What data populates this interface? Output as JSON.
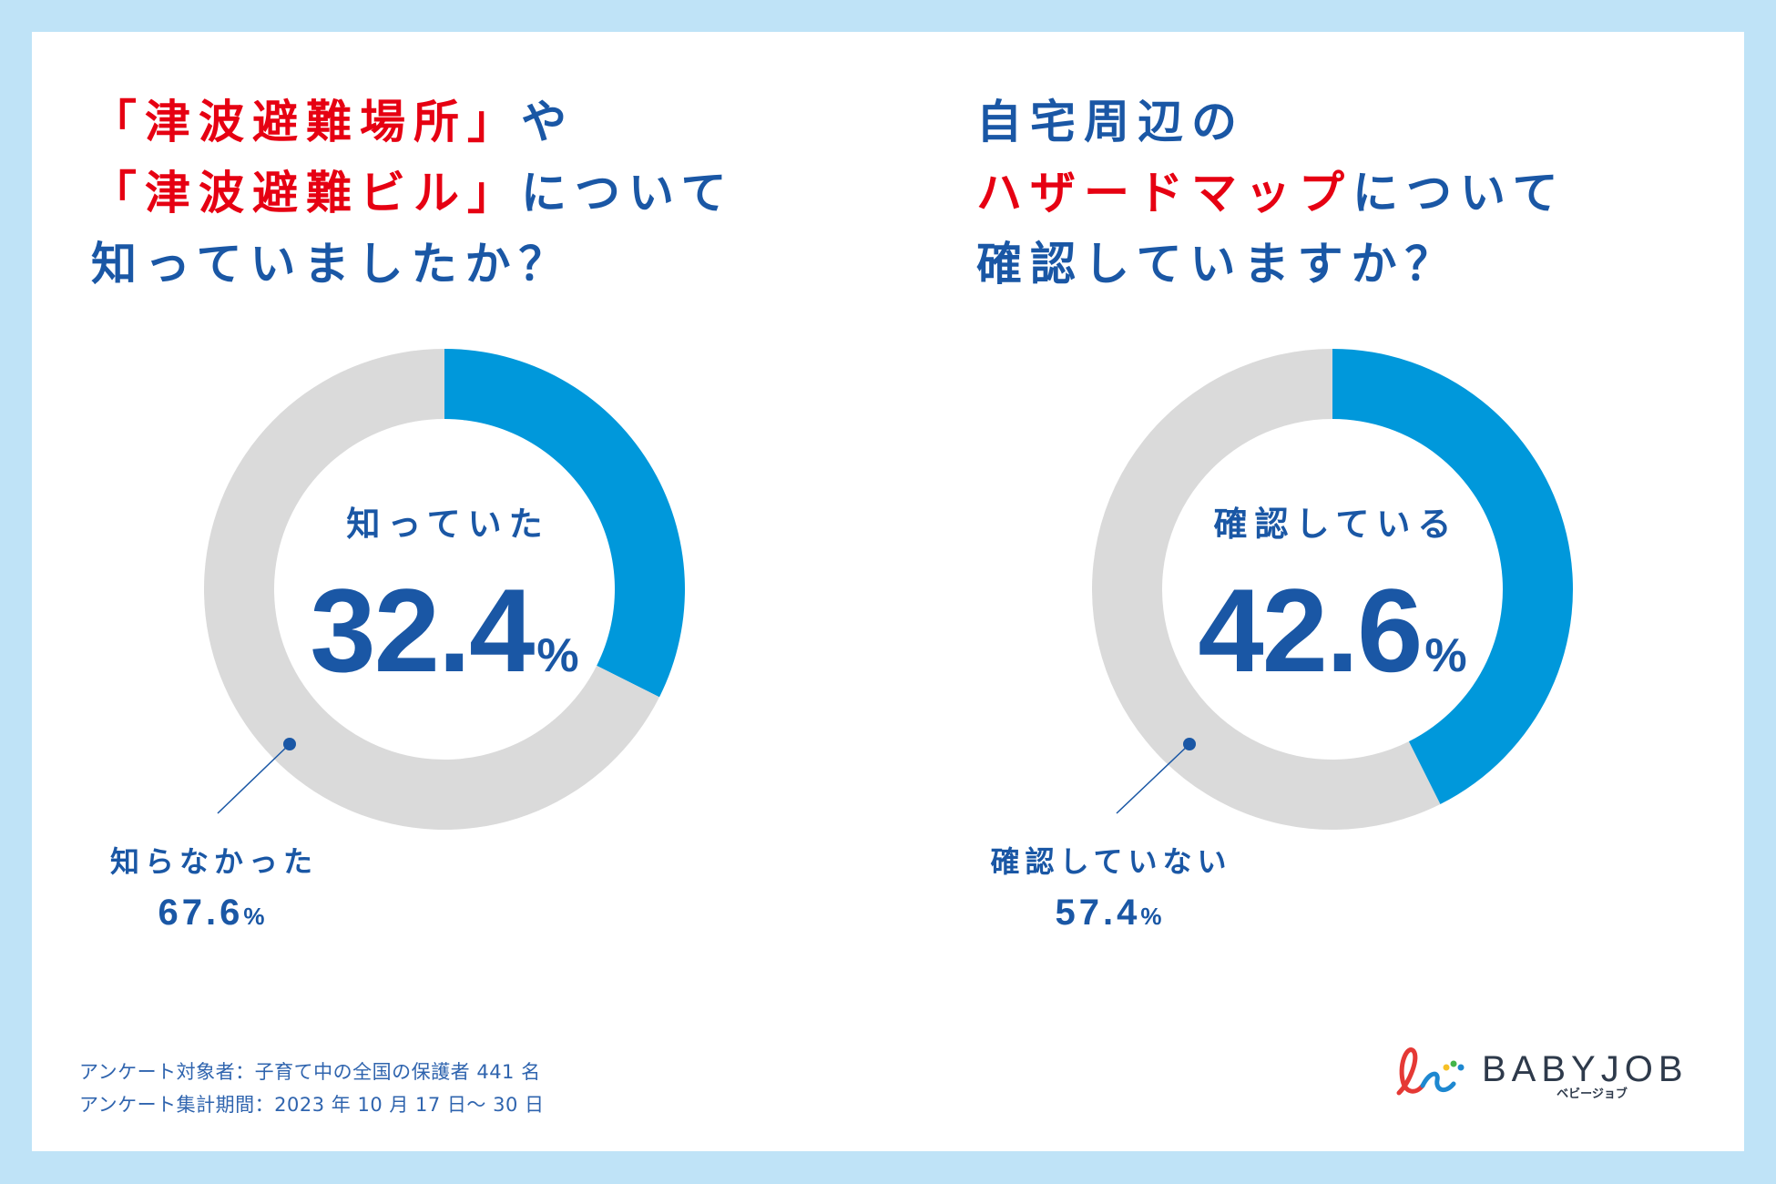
{
  "colors": {
    "frame": "#BFE3F7",
    "panel": "#FFFFFF",
    "title_blue": "#1A57A5",
    "highlight_red": "#E60012",
    "donut_blue": "#0098DB",
    "donut_gray": "#DADADA",
    "footer_text": "#2F64AE"
  },
  "left_question": {
    "lines": [
      [
        {
          "text": "「津波避難場所」",
          "emphasis": true
        },
        {
          "text": "や",
          "emphasis": false
        }
      ],
      [
        {
          "text": "「津波避難ビル」",
          "emphasis": true
        },
        {
          "text": "について",
          "emphasis": false
        }
      ],
      [
        {
          "text": "知っていましたか？",
          "emphasis": false
        }
      ]
    ]
  },
  "right_question": {
    "lines": [
      [
        {
          "text": "自宅周辺の",
          "emphasis": false
        }
      ],
      [
        {
          "text": "ハザードマップ",
          "emphasis": true
        },
        {
          "text": "について",
          "emphasis": false
        }
      ],
      [
        {
          "text": "確認していますか？",
          "emphasis": false
        }
      ]
    ]
  },
  "chart_data": [
    {
      "type": "pie",
      "categories": [
        "知っていた",
        "知らなかった"
      ],
      "values": [
        32.4,
        67.6
      ],
      "unit": "%",
      "colors": [
        "#0098DB",
        "#DADADA"
      ]
    },
    {
      "type": "pie",
      "categories": [
        "確認している",
        "確認していない"
      ],
      "values": [
        42.6,
        57.4
      ],
      "unit": "%",
      "colors": [
        "#0098DB",
        "#DADADA"
      ]
    }
  ],
  "footer": {
    "survey_target": "アンケート対象者：子育て中の全国の保護者 441 名",
    "survey_period": "アンケート集計期間：2023 年 10 月 17 日～ 30 日"
  },
  "logo": {
    "icon": "babyjob-logo-icon",
    "wordmark": "BABYJOB",
    "kana": "ベビージョブ"
  }
}
